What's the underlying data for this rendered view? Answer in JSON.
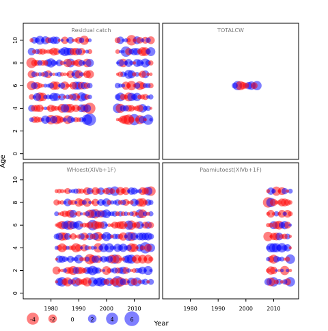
{
  "chart_data": {
    "type": "scatter",
    "subtype": "bubble residual plot, 2x2 panels",
    "xlabel": "Year",
    "ylabel": "Age",
    "xticks": [
      1980,
      1990,
      2000,
      2010
    ],
    "xlim": [
      1970,
      2019
    ],
    "yticks": [
      0,
      2,
      4,
      6,
      8,
      10
    ],
    "ylim": [
      -0.5,
      11.5
    ],
    "colors": {
      "positive": "#0000ff",
      "negative": "#ff0000"
    },
    "legend": {
      "placement": "bottom-left",
      "entries": [
        {
          "label": "-4",
          "value": -4
        },
        {
          "label": "-2",
          "value": -2
        },
        {
          "label": "0",
          "value": 0
        },
        {
          "label": "2",
          "value": 2
        },
        {
          "label": "4",
          "value": 4
        },
        {
          "label": "6",
          "value": 6
        }
      ]
    },
    "panels": [
      {
        "title": "Residual catch",
        "ages": [
          3,
          4,
          5,
          6,
          7,
          8,
          9,
          10
        ],
        "year_ranges": [
          [
            1973,
            1994
          ],
          [
            2004,
            2016
          ]
        ],
        "missing_years": [
          1995,
          1996,
          1997,
          1998,
          1999,
          2000,
          2001,
          2002,
          2003
        ],
        "residuals": [
          {
            "year": 1994,
            "age": 3,
            "value": 4.2
          },
          {
            "year": 1993,
            "age": 3,
            "value": 3.0
          },
          {
            "year": 1980,
            "age": 3,
            "value": -2.5
          },
          {
            "year": 2010,
            "age": 3,
            "value": 3.5
          },
          {
            "year": 2008,
            "age": 3,
            "value": -3.0
          },
          {
            "year": 2015,
            "age": 3,
            "value": 3.0
          },
          {
            "year": 1994,
            "age": 4,
            "value": -3.5
          },
          {
            "year": 1985,
            "age": 4,
            "value": 2.0
          },
          {
            "year": 2004,
            "age": 4,
            "value": 2.5
          },
          {
            "year": 2013,
            "age": 4,
            "value": 2.0
          },
          {
            "year": 1973,
            "age": 8,
            "value": -3.0
          },
          {
            "year": 2009,
            "age": 10,
            "value": -3.0
          },
          {
            "year": 2009,
            "age": 6,
            "value": -2.5
          },
          {
            "year": 2007,
            "age": 9,
            "value": 3.0
          }
        ]
      },
      {
        "title": "TOTALCW",
        "ages": [
          6
        ],
        "year_ranges": [
          [
            1996,
            2004
          ]
        ],
        "missing_years": [],
        "residuals": [
          {
            "year": 1996,
            "age": 6,
            "value": 1.0
          },
          {
            "year": 1999,
            "age": 6,
            "value": -1.5
          },
          {
            "year": 2001,
            "age": 6,
            "value": 1.5
          }
        ]
      },
      {
        "title": "WHoest(XIVb+1F)",
        "ages": [
          1,
          2,
          3,
          4,
          5,
          6,
          7,
          8,
          9
        ],
        "year_ranges": [
          [
            1982,
            2016
          ]
        ],
        "missing_years": [],
        "residuals": [
          {
            "year": 1984,
            "age": 1,
            "value": 2.5
          },
          {
            "year": 2004,
            "age": 1,
            "value": 3.5
          },
          {
            "year": 1995,
            "age": 2,
            "value": 2.5
          },
          {
            "year": 1994,
            "age": 3,
            "value": -3.0
          },
          {
            "year": 1995,
            "age": 6,
            "value": 3.0
          },
          {
            "year": 2014,
            "age": 4,
            "value": 3.5
          },
          {
            "year": 2016,
            "age": 9,
            "value": -2.5
          },
          {
            "year": 2003,
            "age": 9,
            "value": 2.5
          }
        ]
      },
      {
        "title": "Paamiutoest(XIVb+1F)",
        "ages": [
          1,
          2,
          3,
          4,
          5,
          6,
          7,
          8,
          9
        ],
        "year_ranges": [
          [
            2008,
            2016
          ]
        ],
        "missing_years": [],
        "residuals": [
          {
            "year": 2008,
            "age": 8,
            "value": -3.0
          },
          {
            "year": 2008,
            "age": 5,
            "value": -2.5
          },
          {
            "year": 2016,
            "age": 3,
            "value": 2.5
          },
          {
            "year": 2013,
            "age": 4,
            "value": 2.5
          },
          {
            "year": 2016,
            "age": 1,
            "value": 2.5
          }
        ]
      }
    ]
  }
}
